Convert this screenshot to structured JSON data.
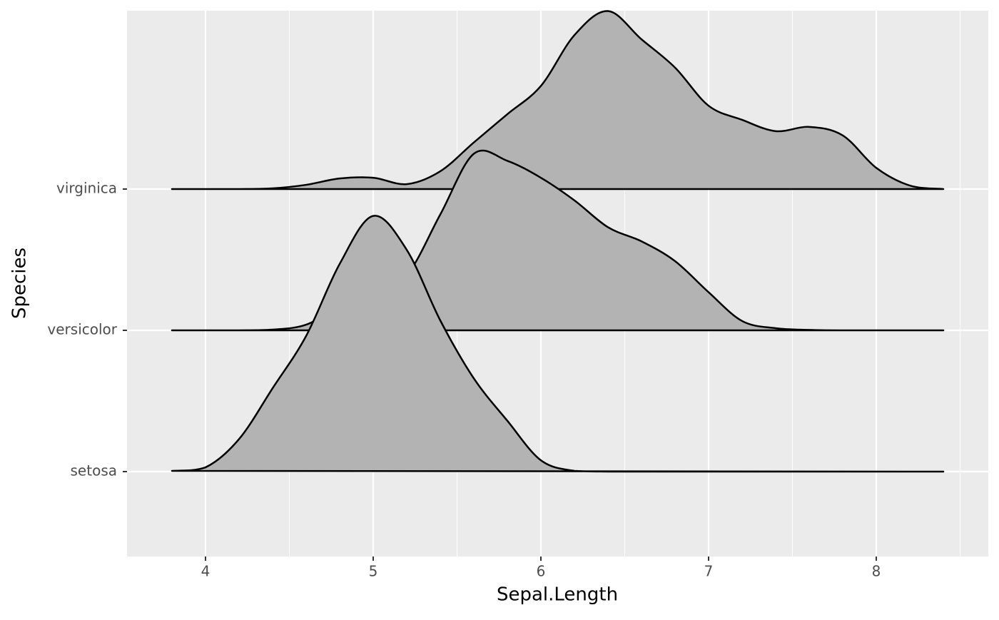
{
  "chart_data": {
    "type": "ridgeline",
    "x_label": "Sepal.Length",
    "y_label": "Species",
    "categories": [
      "setosa",
      "versicolor",
      "virginica"
    ],
    "x": [
      3.8,
      4.0,
      4.2,
      4.4,
      4.6,
      4.8,
      5.0,
      5.2,
      5.4,
      5.6,
      5.8,
      6.0,
      6.2,
      6.4,
      6.6,
      6.8,
      7.0,
      7.2,
      7.4,
      7.6,
      7.8,
      8.0,
      8.2,
      8.4
    ],
    "series": [
      {
        "name": "virginica",
        "color": "#b3b3b3",
        "values": [
          0,
          0,
          0,
          0.005,
          0.03,
          0.075,
          0.08,
          0.035,
          0.126,
          0.33,
          0.53,
          0.73,
          1.09,
          1.26,
          1.06,
          0.86,
          0.59,
          0.49,
          0.41,
          0.44,
          0.38,
          0.15,
          0.025,
          0
        ]
      },
      {
        "name": "versicolor",
        "color": "#b3b3b3",
        "values": [
          0,
          0,
          0,
          0.005,
          0.04,
          0.17,
          0.27,
          0.39,
          0.82,
          1.25,
          1.2,
          1.08,
          0.92,
          0.73,
          0.63,
          0.49,
          0.27,
          0.066,
          0.015,
          0.003,
          0,
          0,
          0,
          0
        ]
      },
      {
        "name": "setosa",
        "color": "#b3b3b3",
        "values": [
          0.005,
          0.03,
          0.23,
          0.59,
          0.96,
          1.47,
          1.81,
          1.57,
          1.07,
          0.66,
          0.36,
          0.08,
          0.005,
          0,
          0,
          0,
          0,
          0,
          0,
          0,
          0,
          0,
          0,
          0
        ]
      }
    ],
    "xlim": [
      3.532,
      8.668
    ],
    "xticks": [
      4,
      5,
      6,
      7,
      8
    ],
    "grid": true
  }
}
